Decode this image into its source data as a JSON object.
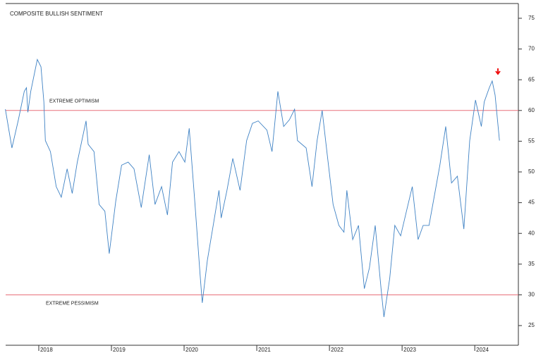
{
  "chart_data": {
    "type": "line",
    "title": "COMPOSITE BULLISH SENTIMENT",
    "x": [
      2017.54,
      2017.63,
      2017.72,
      2017.8,
      2017.83,
      2017.85,
      2017.89,
      2017.98,
      2018.03,
      2018.07,
      2018.09,
      2018.16,
      2018.24,
      2018.31,
      2018.39,
      2018.46,
      2018.53,
      2018.65,
      2018.68,
      2018.76,
      2018.83,
      2018.91,
      2018.97,
      2019.06,
      2019.14,
      2019.23,
      2019.31,
      2019.41,
      2019.52,
      2019.6,
      2019.69,
      2019.77,
      2019.84,
      2019.93,
      2020.01,
      2020.07,
      2020.15,
      2020.22,
      2020.25,
      2020.32,
      2020.4,
      2020.48,
      2020.51,
      2020.59,
      2020.67,
      2020.77,
      2020.86,
      2020.94,
      2021.02,
      2021.14,
      2021.21,
      2021.29,
      2021.37,
      2021.45,
      2021.52,
      2021.56,
      2021.68,
      2021.76,
      2021.83,
      2021.9,
      2021.97,
      2022.05,
      2022.13,
      2022.2,
      2022.24,
      2022.32,
      2022.4,
      2022.48,
      2022.55,
      2022.63,
      2022.71,
      2022.75,
      2022.83,
      2022.9,
      2022.98,
      2023.06,
      2023.14,
      2023.22,
      2023.29,
      2023.37,
      2023.45,
      2023.52,
      2023.6,
      2023.68,
      2023.76,
      2023.85,
      2023.93,
      2024.01,
      2024.09,
      2024.13,
      2024.2,
      2024.24,
      2024.28,
      2024.34
    ],
    "series": [
      {
        "name": "Composite Bullish Sentiment",
        "color": "#3f82c4",
        "values": [
          60.2,
          53.9,
          58.5,
          63.1,
          63.7,
          59.7,
          63.1,
          68.3,
          67.1,
          61.4,
          55.1,
          53.3,
          47.6,
          45.9,
          50.5,
          46.5,
          51.6,
          58.3,
          54.5,
          53.3,
          44.7,
          43.6,
          36.7,
          45.3,
          51.1,
          51.6,
          50.5,
          44.2,
          52.8,
          44.7,
          47.6,
          43.0,
          51.6,
          53.3,
          51.6,
          57.1,
          44.7,
          33.3,
          28.7,
          35.6,
          41.3,
          47.0,
          42.5,
          47.0,
          52.2,
          47.0,
          55.1,
          57.9,
          58.3,
          56.8,
          53.3,
          63.1,
          57.4,
          58.5,
          60.2,
          55.1,
          53.9,
          47.6,
          55.1,
          60.0,
          52.8,
          44.7,
          41.3,
          40.2,
          47.0,
          39.0,
          41.3,
          31.0,
          34.4,
          41.3,
          31.0,
          26.4,
          32.7,
          41.3,
          39.6,
          43.6,
          47.6,
          39.0,
          41.3,
          41.3,
          46.5,
          51.1,
          57.4,
          48.2,
          49.3,
          40.7,
          55.1,
          61.7,
          57.4,
          61.4,
          63.7,
          64.8,
          62.5,
          55.1
        ]
      }
    ],
    "reference_lines": [
      {
        "value": 60,
        "label": "EXTREME OPTIMISM",
        "color": "#e8707a"
      },
      {
        "value": 30,
        "label": "EXTREME PESSIMISM",
        "color": "#e8707a"
      }
    ],
    "xlim": [
      2017.544,
      2024.6
    ],
    "xticks": [
      2018,
      2019,
      2020,
      2021,
      2022,
      2023,
      2024
    ],
    "ylim": [
      21.8,
      77.4
    ],
    "yticks": [
      25,
      30,
      35,
      40,
      45,
      50,
      55,
      60,
      65,
      70,
      75
    ]
  }
}
